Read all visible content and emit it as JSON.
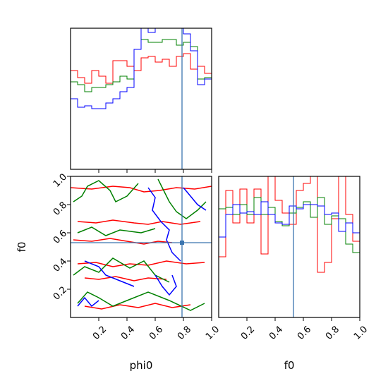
{
  "chart_data": {
    "type": "corner",
    "parameters": [
      "phi0",
      "f0"
    ],
    "xlabels": [
      "phi0",
      "f0"
    ],
    "ylabel": "f0",
    "range": [
      0,
      1
    ],
    "ticks": [
      0.2,
      0.4,
      0.6,
      0.8,
      1.0
    ],
    "tick_labels": [
      "0.2",
      "0.4",
      "0.6",
      "0.8",
      "1.0"
    ],
    "truths": {
      "phi0": 0.79,
      "f0": 0.53
    },
    "colors": {
      "red": "#ff0000",
      "green": "#008000",
      "blue": "#0000ff",
      "truth": "#3b75af"
    },
    "panels": [
      {
        "name": "phi0-histogram",
        "bins": 20,
        "ymax": 1.0,
        "series": [
          {
            "color": "#ff0000",
            "values": [
              0.7,
              0.65,
              0.61,
              0.7,
              0.66,
              0.61,
              0.77,
              0.77,
              0.73,
              0.7,
              0.79,
              0.8,
              0.76,
              0.78,
              0.73,
              0.8,
              0.82,
              0.71,
              0.73,
              0.68
            ]
          },
          {
            "color": "#008000",
            "values": [
              0.62,
              0.6,
              0.55,
              0.58,
              0.58,
              0.6,
              0.62,
              0.66,
              0.64,
              0.85,
              0.92,
              0.9,
              0.9,
              0.92,
              0.92,
              0.88,
              0.9,
              0.87,
              0.64,
              0.65
            ]
          },
          {
            "color": "#0000ff",
            "values": [
              0.5,
              0.44,
              0.45,
              0.43,
              0.43,
              0.47,
              0.5,
              0.55,
              0.58,
              0.85,
              1.02,
              0.97,
              1.02,
              1.01,
              1.05,
              1.03,
              0.96,
              0.84,
              0.6,
              0.64
            ]
          }
        ]
      },
      {
        "name": "f0-histogram",
        "bins": 20,
        "ymax": 1.0,
        "series": [
          {
            "color": "#ff0000",
            "values": [
              0.43,
              0.9,
              0.67,
              0.91,
              0.67,
              0.91,
              0.45,
              1.05,
              0.83,
              0.74,
              0.66,
              0.9,
              0.95,
              1.05,
              0.32,
              0.39,
              0.7,
              1.05,
              0.73,
              0.54
            ]
          },
          {
            "color": "#008000",
            "values": [
              0.77,
              0.78,
              0.73,
              0.8,
              0.73,
              0.85,
              0.73,
              0.78,
              0.68,
              0.65,
              0.74,
              0.78,
              0.82,
              0.71,
              0.85,
              0.66,
              0.72,
              0.7,
              0.52,
              0.46
            ]
          },
          {
            "color": "#0000ff",
            "values": [
              0.57,
              0.73,
              0.8,
              0.74,
              0.75,
              0.73,
              0.82,
              0.73,
              0.67,
              0.66,
              0.79,
              0.77,
              0.8,
              0.8,
              0.79,
              0.73,
              0.74,
              0.61,
              0.67,
              0.6
            ]
          }
        ]
      },
      {
        "name": "phi0-f0-contours",
        "series": [
          {
            "color": "#ff0000",
            "paths": [
              [
                [
                  0.0,
                  0.92
                ],
                [
                  0.15,
                  0.91
                ],
                [
                  0.3,
                  0.93
                ],
                [
                  0.42,
                  0.92
                ],
                [
                  0.52,
                  0.89
                ],
                [
                  0.63,
                  0.9
                ],
                [
                  0.75,
                  0.92
                ],
                [
                  0.88,
                  0.91
                ],
                [
                  1.0,
                  0.93
                ]
              ],
              [
                [
                  0.05,
                  0.68
                ],
                [
                  0.18,
                  0.67
                ],
                [
                  0.3,
                  0.69
                ],
                [
                  0.45,
                  0.67
                ],
                [
                  0.55,
                  0.66
                ],
                [
                  0.65,
                  0.68
                ],
                [
                  0.78,
                  0.66
                ],
                [
                  0.92,
                  0.68
                ]
              ],
              [
                [
                  0.02,
                  0.55
                ],
                [
                  0.15,
                  0.54
                ],
                [
                  0.28,
                  0.56
                ],
                [
                  0.4,
                  0.54
                ],
                [
                  0.52,
                  0.52
                ],
                [
                  0.62,
                  0.54
                ],
                [
                  0.72,
                  0.53
                ]
              ],
              [
                [
                  0.05,
                  0.38
                ],
                [
                  0.18,
                  0.39
                ],
                [
                  0.3,
                  0.36
                ],
                [
                  0.42,
                  0.38
                ],
                [
                  0.55,
                  0.37
                ],
                [
                  0.68,
                  0.4
                ],
                [
                  0.82,
                  0.38
                ],
                [
                  0.95,
                  0.39
                ]
              ],
              [
                [
                  0.1,
                  0.28
                ],
                [
                  0.2,
                  0.27
                ],
                [
                  0.32,
                  0.29
                ],
                [
                  0.45,
                  0.26
                ],
                [
                  0.55,
                  0.28
                ],
                [
                  0.68,
                  0.27
                ]
              ],
              [
                [
                  0.1,
                  0.08
                ],
                [
                  0.22,
                  0.06
                ],
                [
                  0.35,
                  0.09
                ],
                [
                  0.48,
                  0.07
                ],
                [
                  0.6,
                  0.1
                ],
                [
                  0.72,
                  0.07
                ],
                [
                  0.85,
                  0.09
                ]
              ]
            ]
          },
          {
            "color": "#008000",
            "paths": [
              [
                [
                  0.02,
                  0.82
                ],
                [
                  0.08,
                  0.86
                ],
                [
                  0.12,
                  0.93
                ],
                [
                  0.2,
                  0.97
                ],
                [
                  0.28,
                  0.9
                ],
                [
                  0.32,
                  0.82
                ],
                [
                  0.4,
                  0.86
                ],
                [
                  0.48,
                  0.95
                ]
              ],
              [
                [
                  0.62,
                  0.98
                ],
                [
                  0.66,
                  0.9
                ],
                [
                  0.7,
                  0.82
                ],
                [
                  0.75,
                  0.75
                ],
                [
                  0.82,
                  0.7
                ],
                [
                  0.9,
                  0.76
                ],
                [
                  0.96,
                  0.82
                ]
              ],
              [
                [
                  0.05,
                  0.6
                ],
                [
                  0.15,
                  0.64
                ],
                [
                  0.25,
                  0.58
                ],
                [
                  0.35,
                  0.62
                ],
                [
                  0.5,
                  0.6
                ],
                [
                  0.6,
                  0.63
                ]
              ],
              [
                [
                  0.02,
                  0.3
                ],
                [
                  0.1,
                  0.36
                ],
                [
                  0.2,
                  0.32
                ],
                [
                  0.3,
                  0.42
                ],
                [
                  0.42,
                  0.35
                ],
                [
                  0.52,
                  0.4
                ],
                [
                  0.6,
                  0.3
                ],
                [
                  0.7,
                  0.25
                ]
              ],
              [
                [
                  0.05,
                  0.1
                ],
                [
                  0.12,
                  0.18
                ],
                [
                  0.2,
                  0.14
                ],
                [
                  0.3,
                  0.08
                ],
                [
                  0.4,
                  0.12
                ],
                [
                  0.55,
                  0.18
                ],
                [
                  0.7,
                  0.12
                ],
                [
                  0.85,
                  0.05
                ],
                [
                  0.95,
                  0.1
                ]
              ]
            ]
          },
          {
            "color": "#0000ff",
            "paths": [
              [
                [
                  0.55,
                  0.92
                ],
                [
                  0.6,
                  0.85
                ],
                [
                  0.58,
                  0.76
                ],
                [
                  0.64,
                  0.68
                ],
                [
                  0.7,
                  0.62
                ],
                [
                  0.68,
                  0.55
                ],
                [
                  0.72,
                  0.46
                ],
                [
                  0.78,
                  0.4
                ]
              ],
              [
                [
                  0.8,
                  0.92
                ],
                [
                  0.85,
                  0.86
                ],
                [
                  0.9,
                  0.8
                ],
                [
                  0.96,
                  0.76
                ]
              ],
              [
                [
                  0.1,
                  0.4
                ],
                [
                  0.2,
                  0.36
                ],
                [
                  0.25,
                  0.3
                ],
                [
                  0.35,
                  0.26
                ],
                [
                  0.45,
                  0.22
                ]
              ],
              [
                [
                  0.6,
                  0.3
                ],
                [
                  0.65,
                  0.22
                ],
                [
                  0.7,
                  0.16
                ],
                [
                  0.75,
                  0.22
                ],
                [
                  0.72,
                  0.3
                ]
              ],
              [
                [
                  0.05,
                  0.08
                ],
                [
                  0.1,
                  0.14
                ],
                [
                  0.15,
                  0.08
                ],
                [
                  0.2,
                  0.12
                ]
              ]
            ]
          }
        ]
      }
    ]
  }
}
